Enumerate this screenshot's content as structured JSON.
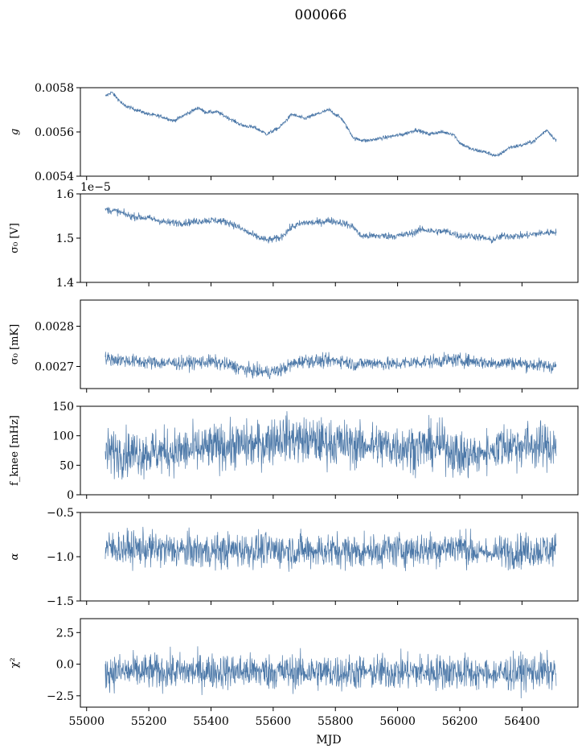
{
  "figure": {
    "title": "000066",
    "xlabel": "MJD"
  },
  "colors": {
    "series": "#4c78a8",
    "axes": "#000000"
  },
  "chart_data": [
    {
      "type": "line",
      "ylabel": "g",
      "ylim": [
        0.0054,
        0.0058
      ],
      "yticks": [
        "0.0054",
        "0.0056",
        "0.0058"
      ],
      "xlim": [
        54980,
        56580
      ],
      "grid": false,
      "noise": 6e-06,
      "series": [
        {
          "x": [
            55060,
            55080,
            55120,
            55160,
            55200,
            55240,
            55280,
            55320,
            55360,
            55380,
            55420,
            55460,
            55500,
            55540,
            55580,
            55620,
            55660,
            55700,
            55740,
            55780,
            55820,
            55860,
            55900,
            55940,
            55980,
            56020,
            56060,
            56100,
            56140,
            56180,
            56200,
            56240,
            56280,
            56320,
            56360,
            56400,
            56440,
            56480,
            56510
          ],
          "y": [
            0.00576,
            0.00578,
            0.00572,
            0.0057,
            0.00568,
            0.00567,
            0.00565,
            0.00568,
            0.00571,
            0.00569,
            0.00569,
            0.00566,
            0.00563,
            0.00562,
            0.00559,
            0.00562,
            0.00568,
            0.00566,
            0.00568,
            0.0057,
            0.00566,
            0.00557,
            0.00556,
            0.00557,
            0.00558,
            0.00559,
            0.00561,
            0.00559,
            0.0056,
            0.00559,
            0.00555,
            0.00552,
            0.00551,
            0.00549,
            0.00553,
            0.00554,
            0.00556,
            0.00561,
            0.00556
          ]
        }
      ]
    },
    {
      "type": "line",
      "ylabel": "σ₀ [V]",
      "offset_text": "1e−5",
      "ylim": [
        1.4,
        1.6
      ],
      "yticks": [
        "1.4",
        "1.5",
        "1.6"
      ],
      "xlim": [
        54980,
        56580
      ],
      "grid": false,
      "noise": 0.006,
      "series": [
        {
          "x": [
            55060,
            55100,
            55140,
            55200,
            55260,
            55320,
            55380,
            55420,
            55460,
            55500,
            55540,
            55580,
            55620,
            55660,
            55700,
            55740,
            55780,
            55820,
            55860,
            55880,
            55920,
            55960,
            56000,
            56040,
            56080,
            56120,
            56160,
            56200,
            56240,
            56280,
            56300,
            56340,
            56400,
            56450,
            56510
          ],
          "y": [
            1.565,
            1.56,
            1.55,
            1.545,
            1.535,
            1.535,
            1.54,
            1.54,
            1.535,
            1.52,
            1.505,
            1.495,
            1.5,
            1.525,
            1.535,
            1.535,
            1.54,
            1.535,
            1.525,
            1.505,
            1.505,
            1.505,
            1.505,
            1.51,
            1.52,
            1.515,
            1.515,
            1.505,
            1.505,
            1.5,
            1.495,
            1.505,
            1.505,
            1.51,
            1.515
          ]
        }
      ]
    },
    {
      "type": "line",
      "ylabel": "σ₀ [mK]",
      "ylim": [
        0.002645,
        0.002865
      ],
      "yticks": [
        "0.0027",
        "0.0028"
      ],
      "xlim": [
        54980,
        56580
      ],
      "grid": false,
      "noise": 1.2e-05,
      "series": [
        {
          "x": [
            55060,
            55120,
            55200,
            55300,
            55400,
            55460,
            55520,
            55580,
            55620,
            55660,
            55700,
            55760,
            55820,
            55860,
            55920,
            55980,
            56040,
            56100,
            56160,
            56220,
            56260,
            56300,
            56360,
            56420,
            56510
          ],
          "y": [
            0.00272,
            0.002715,
            0.00271,
            0.002708,
            0.002712,
            0.002703,
            0.00269,
            0.002686,
            0.00269,
            0.002705,
            0.002715,
            0.002713,
            0.002715,
            0.002705,
            0.00271,
            0.002705,
            0.00271,
            0.002712,
            0.002716,
            0.002715,
            0.002712,
            0.002708,
            0.00271,
            0.002705,
            0.0027
          ]
        }
      ]
    },
    {
      "type": "line",
      "ylabel": "f_knee [mHz]",
      "ylim": [
        0,
        150
      ],
      "yticks": [
        "0",
        "50",
        "100",
        "150"
      ],
      "xlim": [
        54980,
        56580
      ],
      "grid": false,
      "noise": 28,
      "series": [
        {
          "x": [
            55060,
            55200,
            55300,
            55390,
            55420,
            55560,
            55620,
            55700,
            55800,
            55900,
            55920,
            56050,
            56150,
            56200,
            56260,
            56300,
            56330,
            56420,
            56510
          ],
          "y": [
            72,
            72,
            74,
            78,
            82,
            85,
            98,
            92,
            88,
            82,
            84,
            80,
            84,
            66,
            68,
            74,
            84,
            84,
            82
          ]
        }
      ]
    },
    {
      "type": "line",
      "ylabel": "α",
      "ylim": [
        -1.5,
        -0.5
      ],
      "yticks": [
        "−1.5",
        "−1.0",
        "−0.5"
      ],
      "xlim": [
        54980,
        56580
      ],
      "grid": false,
      "noise": 0.14,
      "series": [
        {
          "x": [
            55060,
            55200,
            55300,
            55400,
            55500,
            55600,
            55700,
            55800,
            55900,
            56000,
            56100,
            56200,
            56260,
            56300,
            56400,
            56510
          ],
          "y": [
            -0.9,
            -0.91,
            -0.93,
            -0.94,
            -0.92,
            -0.92,
            -0.93,
            -0.93,
            -0.94,
            -0.92,
            -0.92,
            -0.88,
            -0.95,
            -0.96,
            -0.93,
            -0.92
          ]
        }
      ]
    },
    {
      "type": "line",
      "ylabel": "χ²",
      "ylim": [
        -3.4,
        3.6
      ],
      "yticks": [
        "−2.5",
        "0.0",
        "2.5"
      ],
      "xlim": [
        54980,
        56580
      ],
      "grid": false,
      "noise": 1.0,
      "series": [
        {
          "x": [
            55060,
            55200,
            55400,
            55600,
            55800,
            56000,
            56200,
            56300,
            56400,
            56510
          ],
          "y": [
            -0.6,
            -0.6,
            -0.55,
            -0.6,
            -0.65,
            -0.6,
            -0.6,
            -0.8,
            -0.6,
            -0.6
          ]
        }
      ]
    }
  ],
  "xaxis": {
    "ticks": [
      55000,
      55200,
      55400,
      55600,
      55800,
      56000,
      56200,
      56400
    ],
    "labels": [
      "55000",
      "55200",
      "55400",
      "55600",
      "55800",
      "56000",
      "56200",
      "56400"
    ]
  }
}
